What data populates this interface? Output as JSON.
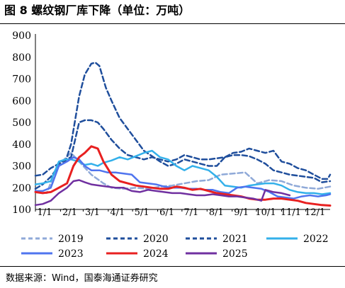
{
  "title": "图 8 螺纹钢厂库下降（单位：万吨）",
  "source": "数据来源：Wind，国泰海通证券研究",
  "chart_data": {
    "type": "line",
    "ylim": [
      100,
      900
    ],
    "yticks": [
      "100",
      "200",
      "300",
      "400",
      "500",
      "600",
      "700",
      "800",
      "900"
    ],
    "xticks": [
      "1/1",
      "2/1",
      "3/1",
      "4/1",
      "5/1",
      "6/1",
      "7/1",
      "8/1",
      "9/1",
      "10/1",
      "11/1",
      "12/1"
    ],
    "x_day_of_year_range": [
      1,
      365
    ],
    "legend_position": "bottom",
    "series": [
      {
        "name": "2019",
        "color": "#8fa9d8",
        "dash": "7,4",
        "width": 2.5,
        "x": [
          1,
          15,
          28,
          45,
          55,
          70,
          85,
          95,
          110,
          125,
          140,
          155,
          170,
          185,
          200,
          215,
          230,
          245,
          260,
          275,
          290,
          305,
          320,
          335,
          350,
          365
        ],
        "values": [
          180,
          175,
          300,
          360,
          320,
          260,
          220,
          200,
          195,
          200,
          195,
          205,
          210,
          220,
          230,
          235,
          260,
          265,
          270,
          220,
          235,
          230,
          210,
          200,
          195,
          205
        ]
      },
      {
        "name": "2020",
        "color": "#1f4e9c",
        "dash": "7,4",
        "width": 2.5,
        "x": [
          1,
          10,
          20,
          30,
          38,
          45,
          55,
          62,
          70,
          75,
          80,
          88,
          95,
          105,
          115,
          125,
          135,
          145,
          155,
          165,
          175,
          185,
          195,
          205,
          215,
          225,
          235,
          245,
          255,
          265,
          275,
          285,
          295,
          305,
          315,
          325,
          335,
          345,
          355,
          365
        ],
        "values": [
          195,
          215,
          250,
          300,
          320,
          400,
          620,
          720,
          770,
          775,
          760,
          660,
          600,
          520,
          470,
          420,
          370,
          345,
          320,
          300,
          310,
          330,
          320,
          310,
          300,
          300,
          340,
          350,
          350,
          345,
          330,
          310,
          280,
          270,
          260,
          255,
          250,
          245,
          225,
          230
        ]
      },
      {
        "name": "2021",
        "color": "#1f4e9c",
        "dash": "7,4",
        "width": 2.5,
        "x": [
          1,
          10,
          20,
          30,
          38,
          45,
          55,
          62,
          70,
          78,
          85,
          95,
          105,
          115,
          125,
          135,
          145,
          155,
          165,
          175,
          185,
          195,
          205,
          215,
          225,
          235,
          245,
          255,
          265,
          275,
          285,
          295,
          305,
          315,
          325,
          335,
          345,
          355,
          362,
          365
        ],
        "values": [
          255,
          260,
          290,
          310,
          330,
          340,
          500,
          510,
          510,
          500,
          470,
          420,
          380,
          350,
          340,
          330,
          340,
          330,
          320,
          330,
          350,
          340,
          330,
          330,
          335,
          340,
          360,
          365,
          380,
          370,
          360,
          370,
          320,
          310,
          290,
          280,
          260,
          240,
          240,
          260
        ]
      },
      {
        "name": "2022",
        "color": "#33b0ea",
        "dash": "",
        "width": 2.5,
        "x": [
          1,
          10,
          20,
          30,
          38,
          45,
          55,
          62,
          70,
          78,
          85,
          95,
          105,
          115,
          125,
          135,
          145,
          155,
          165,
          175,
          185,
          195,
          205,
          215,
          225,
          235,
          245,
          255,
          265,
          275,
          285,
          295,
          305,
          315,
          325,
          335,
          345,
          355,
          365
        ],
        "values": [
          215,
          220,
          230,
          320,
          330,
          330,
          320,
          305,
          310,
          300,
          315,
          325,
          340,
          330,
          345,
          360,
          370,
          340,
          330,
          300,
          280,
          300,
          290,
          280,
          250,
          210,
          205,
          200,
          210,
          215,
          220,
          220,
          210,
          190,
          180,
          175,
          175,
          170,
          175
        ]
      },
      {
        "name": "2023",
        "color": "#4f74ef",
        "dash": "",
        "width": 2.5,
        "x": [
          1,
          10,
          20,
          30,
          40,
          48,
          55,
          62,
          70,
          80,
          90,
          100,
          110,
          120,
          130,
          140,
          150,
          160,
          170,
          180,
          190,
          200,
          210,
          220,
          230,
          240,
          250,
          260,
          270,
          280,
          290,
          300,
          310,
          320,
          330,
          340,
          350,
          360,
          365
        ],
        "values": [
          185,
          185,
          200,
          300,
          320,
          340,
          330,
          300,
          280,
          280,
          270,
          270,
          265,
          260,
          225,
          220,
          215,
          205,
          200,
          200,
          195,
          195,
          190,
          190,
          180,
          175,
          200,
          205,
          200,
          195,
          180,
          160,
          155,
          150,
          160,
          165,
          160,
          165,
          170
        ]
      },
      {
        "name": "2024",
        "color": "#e82020",
        "dash": "",
        "width": 3,
        "x": [
          1,
          10,
          20,
          30,
          40,
          48,
          55,
          62,
          70,
          78,
          85,
          95,
          105,
          115,
          125,
          135,
          145,
          155,
          165,
          175,
          185,
          195,
          205,
          215,
          225,
          235,
          245,
          255,
          265,
          275,
          285,
          295,
          305,
          315,
          325,
          335,
          345,
          355,
          365
        ],
        "values": [
          180,
          175,
          180,
          200,
          220,
          300,
          340,
          360,
          390,
          380,
          320,
          260,
          230,
          220,
          210,
          205,
          200,
          195,
          195,
          205,
          200,
          190,
          195,
          185,
          175,
          170,
          165,
          160,
          150,
          145,
          145,
          150,
          150,
          145,
          140,
          130,
          125,
          120,
          118
        ]
      },
      {
        "name": "2025",
        "color": "#7030a0",
        "dash": "",
        "width": 2.5,
        "x": [
          1,
          10,
          20,
          30,
          40,
          48,
          55,
          62,
          70,
          80,
          90,
          100,
          110,
          120,
          130,
          140,
          150,
          160,
          170,
          180,
          190,
          200,
          210,
          220,
          230,
          240,
          250,
          260,
          270,
          280,
          285,
          295,
          305,
          315
        ],
        "values": [
          120,
          125,
          140,
          175,
          200,
          230,
          235,
          225,
          215,
          210,
          205,
          200,
          200,
          185,
          180,
          190,
          185,
          180,
          175,
          175,
          170,
          165,
          165,
          170,
          165,
          160,
          160,
          155,
          150,
          140,
          190,
          180,
          175,
          165
        ]
      }
    ]
  }
}
